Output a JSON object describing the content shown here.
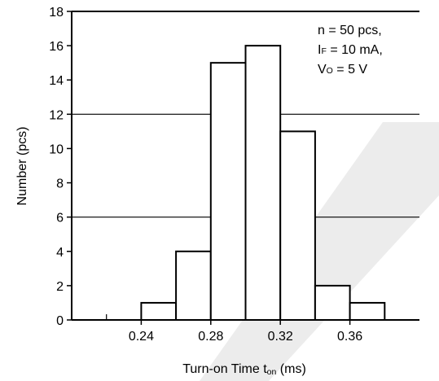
{
  "chart_data": {
    "type": "bar",
    "bins": [
      {
        "x0": 0.22,
        "x1": 0.24,
        "count": 0
      },
      {
        "x0": 0.24,
        "x1": 0.26,
        "count": 1
      },
      {
        "x0": 0.26,
        "x1": 0.28,
        "count": 4
      },
      {
        "x0": 0.28,
        "x1": 0.3,
        "count": 15
      },
      {
        "x0": 0.3,
        "x1": 0.32,
        "count": 16
      },
      {
        "x0": 0.32,
        "x1": 0.34,
        "count": 11
      },
      {
        "x0": 0.34,
        "x1": 0.36,
        "count": 2
      },
      {
        "x0": 0.36,
        "x1": 0.38,
        "count": 1
      }
    ],
    "xlim": [
      0.2,
      0.4
    ],
    "ylim": [
      0,
      18
    ],
    "x_ticks": [
      0.24,
      0.28,
      0.32,
      0.36
    ],
    "x_tick_labels": [
      "0.24",
      "0.28",
      "0.32",
      "0.36"
    ],
    "x_minor_ticks": [
      0.22,
      0.26,
      0.3,
      0.34,
      0.38
    ],
    "y_ticks": [
      0,
      2,
      4,
      6,
      8,
      10,
      12,
      14,
      16,
      18
    ],
    "y_tick_labels": [
      "0",
      "2",
      "4",
      "6",
      "8",
      "10",
      "12",
      "14",
      "16",
      "18"
    ],
    "gridlines_y": [
      6,
      12
    ],
    "xlabel": {
      "main": "Turn-on Time  t",
      "sub": "on",
      "unit": " (ms)"
    },
    "ylabel": "Number  (pcs)",
    "annotation": [
      {
        "main": "n = 50 pcs,",
        "sub": "",
        "rest": ""
      },
      {
        "main": "I",
        "sub": "F",
        "rest": " = 10 mA,"
      },
      {
        "main": "V",
        "sub": "O",
        "rest": " = 5 V"
      }
    ]
  }
}
